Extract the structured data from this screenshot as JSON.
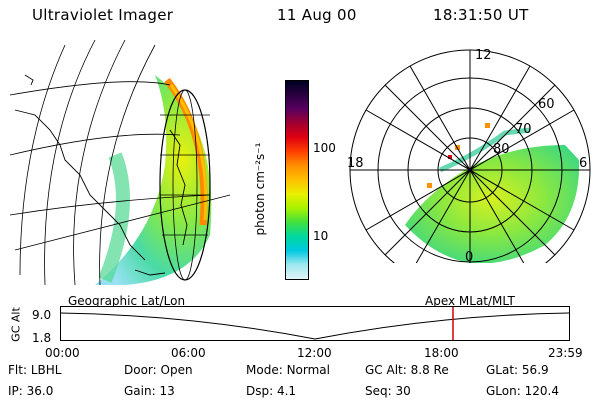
{
  "header": {
    "instrument": "Ultraviolet Imager",
    "date": "11 Aug 00",
    "time": "18:31:50 UT"
  },
  "colorbar": {
    "unit_label": "photon cm⁻²s⁻¹",
    "ticks": [
      "100",
      "10"
    ],
    "colors": [
      "#000020",
      "#2a0040",
      "#5a0060",
      "#a00030",
      "#e00010",
      "#ff4000",
      "#ff9000",
      "#ffc000",
      "#e8f000",
      "#a8f000",
      "#40e040",
      "#00d8a0",
      "#00c8e0",
      "#a0e8f0",
      "#e0f4f8"
    ]
  },
  "geo_panel": {
    "label": "Geographic Lat/Lon"
  },
  "polar_panel": {
    "label": "Apex MLat/MLT",
    "mlt_labels": {
      "top": "12",
      "left": "18",
      "right": "6",
      "bottom": "0"
    },
    "lat_labels": [
      "60",
      "70",
      "80"
    ]
  },
  "altitude_plot": {
    "ylabel": "GC Alt",
    "yticks": [
      "9.0",
      "1.8"
    ],
    "xticks": [
      "00:00",
      "06:00",
      "12:00",
      "18:00",
      "23:59"
    ],
    "marker_color": "#d00000"
  },
  "status": {
    "row1": [
      {
        "key": "Flt:",
        "value": "LBHL"
      },
      {
        "key": "Door:",
        "value": "Open"
      },
      {
        "key": "Mode:",
        "value": "Normal"
      },
      {
        "key": "GC Alt:",
        "value": "8.8 Re"
      },
      {
        "key": "GLat:",
        "value": "56.9"
      }
    ],
    "row2": [
      {
        "key": "IP:",
        "value": "36.0"
      },
      {
        "key": "Gain:",
        "value": "13"
      },
      {
        "key": "Dsp:",
        "value": "4.1"
      },
      {
        "key": "Seq:",
        "value": "30"
      },
      {
        "key": "GLon:",
        "value": "120.4"
      }
    ]
  }
}
